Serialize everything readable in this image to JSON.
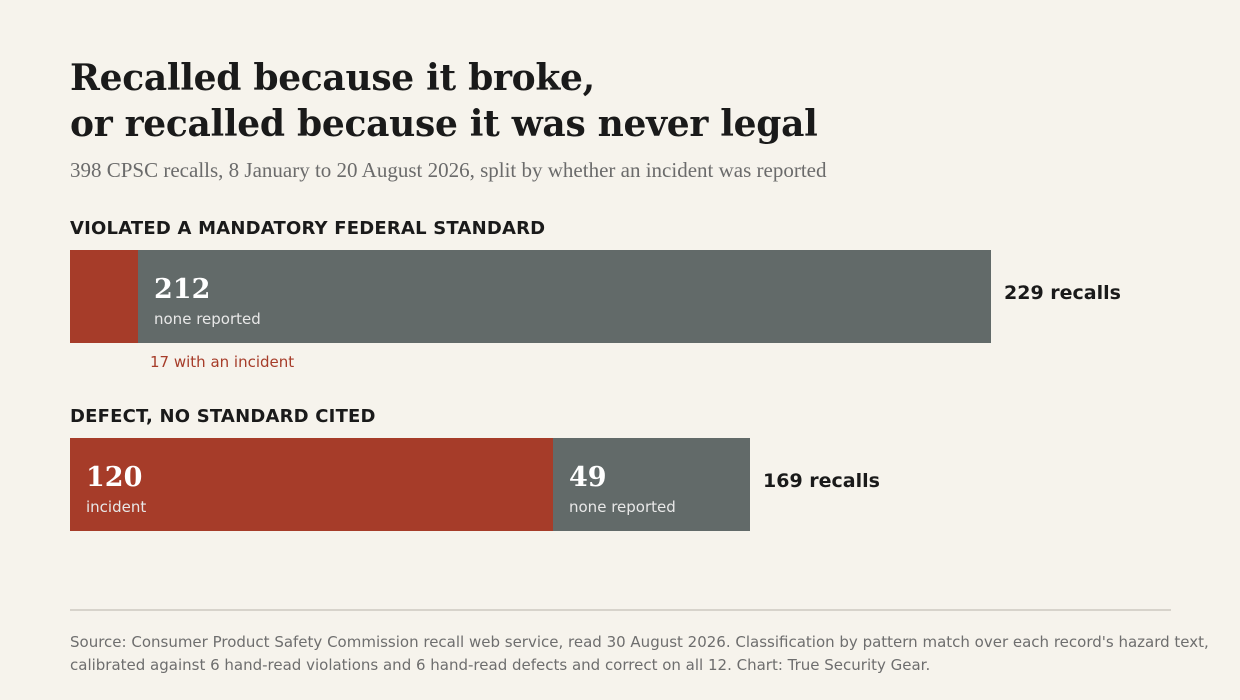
{
  "chart_data": {
    "type": "bar",
    "orientation": "horizontal",
    "stacked": true,
    "title_lines": [
      "Recalled because it broke,",
      "or recalled because it was never legal"
    ],
    "subtitle": "398 CPSC recalls, 8 January to 20 August 2026, split by whether an incident was reported",
    "groups": [
      {
        "label": "VIOLATED A MANDATORY FEDERAL STANDARD",
        "total": 229,
        "total_label": "229 recalls",
        "segments": [
          {
            "key": "incident",
            "value": 17,
            "value_text": "",
            "label": "",
            "callout": "17 with an incident"
          },
          {
            "key": "none",
            "value": 212,
            "value_text": "212",
            "label": "none reported"
          }
        ]
      },
      {
        "label": "DEFECT, NO STANDARD CITED",
        "total": 169,
        "total_label": "169 recalls",
        "segments": [
          {
            "key": "incident",
            "value": 120,
            "value_text": "120",
            "label": "incident"
          },
          {
            "key": "none",
            "value": 49,
            "value_text": "49",
            "label": "none reported"
          }
        ]
      }
    ],
    "colors": {
      "incident": "#a63c29",
      "none": "#626a69"
    },
    "grid": false,
    "legend": "none",
    "source_lines": [
      "Source: Consumer Product Safety Commission recall web service, read 30 August 2026. Classification by pattern match over each record's hazard text,",
      "calibrated against 6 hand-read violations and 6 hand-read defects and correct on all 12. Chart: True Security Gear."
    ]
  }
}
